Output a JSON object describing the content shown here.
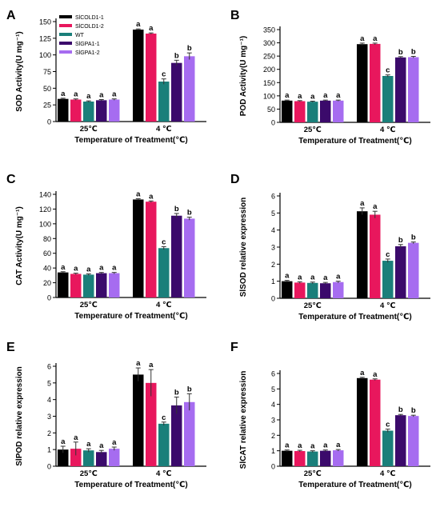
{
  "legend": {
    "placement": "inside panel A, top-left",
    "entries": [
      {
        "name": "SlCOLD1-1",
        "color": "#000000"
      },
      {
        "name": "SlCOLD1-2",
        "color": "#e8175d"
      },
      {
        "name": "WT",
        "color": "#1a7f7a"
      },
      {
        "name": "SlGPA1-1",
        "color": "#3b0a6b"
      },
      {
        "name": "SlGPA1-2",
        "color": "#a66cf0"
      }
    ]
  },
  "chart_data": [
    {
      "panel": "A",
      "type": "bar",
      "ylabel": "SOD Activity(U mg⁻¹)",
      "xlabel": "Temperature of Treatment(℃)",
      "categories": [
        "25℃",
        "4 ℃"
      ],
      "ylim": [
        0,
        150
      ],
      "yticks": [
        0,
        25,
        50,
        75,
        100,
        125,
        150
      ],
      "series": [
        {
          "name": "SlCOLD1-1",
          "values": [
            34,
            138
          ],
          "errors": [
            1,
            1
          ],
          "letters": [
            "a",
            "a"
          ]
        },
        {
          "name": "SlCOLD1-2",
          "values": [
            33,
            132
          ],
          "errors": [
            1,
            1
          ],
          "letters": [
            "a",
            "a"
          ]
        },
        {
          "name": "WT",
          "values": [
            30,
            60
          ],
          "errors": [
            1,
            4
          ],
          "letters": [
            "a",
            "c"
          ]
        },
        {
          "name": "SlGPA1-1",
          "values": [
            32,
            88
          ],
          "errors": [
            1,
            4
          ],
          "letters": [
            "a",
            "b"
          ]
        },
        {
          "name": "SlGPA1-2",
          "values": [
            33,
            98
          ],
          "errors": [
            1,
            5
          ],
          "letters": [
            "a",
            "b"
          ]
        }
      ]
    },
    {
      "panel": "B",
      "type": "bar",
      "ylabel": "POD Activity(U mg⁻¹)",
      "xlabel": "Temperature of Treatment(℃)",
      "categories": [
        "25℃",
        "4 ℃"
      ],
      "ylim": [
        0,
        350
      ],
      "yticks": [
        0,
        50,
        100,
        150,
        200,
        250,
        300,
        350
      ],
      "series": [
        {
          "name": "SlCOLD1-1",
          "values": [
            82,
            295
          ],
          "errors": [
            2,
            4
          ],
          "letters": [
            "a",
            "a"
          ]
        },
        {
          "name": "SlCOLD1-2",
          "values": [
            80,
            296
          ],
          "errors": [
            2,
            3
          ],
          "letters": [
            "a",
            "a"
          ]
        },
        {
          "name": "WT",
          "values": [
            78,
            175
          ],
          "errors": [
            2,
            4
          ],
          "letters": [
            "a",
            "c"
          ]
        },
        {
          "name": "SlGPA1-1",
          "values": [
            82,
            245
          ],
          "errors": [
            2,
            3
          ],
          "letters": [
            "a",
            "b"
          ]
        },
        {
          "name": "SlGPA1-2",
          "values": [
            82,
            246
          ],
          "errors": [
            2,
            3
          ],
          "letters": [
            "a",
            "b"
          ]
        }
      ]
    },
    {
      "panel": "C",
      "type": "bar",
      "ylabel": "CAT Activity(U mg⁻¹)",
      "xlabel": "Temperature of Treatment(℃)",
      "categories": [
        "25℃",
        "4 ℃"
      ],
      "ylim": [
        0,
        140
      ],
      "yticks": [
        0,
        20,
        40,
        60,
        80,
        100,
        120,
        140
      ],
      "series": [
        {
          "name": "SlCOLD1-1",
          "values": [
            34,
            133
          ],
          "errors": [
            1,
            1
          ],
          "letters": [
            "a",
            "a"
          ]
        },
        {
          "name": "SlCOLD1-2",
          "values": [
            32,
            130
          ],
          "errors": [
            1,
            1
          ],
          "letters": [
            "a",
            "a"
          ]
        },
        {
          "name": "WT",
          "values": [
            31,
            67
          ],
          "errors": [
            1,
            2
          ],
          "letters": [
            "a",
            "c"
          ]
        },
        {
          "name": "SlGPA1-1",
          "values": [
            33,
            111
          ],
          "errors": [
            1,
            3
          ],
          "letters": [
            "a",
            "b"
          ]
        },
        {
          "name": "SlGPA1-2",
          "values": [
            33,
            107
          ],
          "errors": [
            1,
            2
          ],
          "letters": [
            "a",
            "b"
          ]
        }
      ]
    },
    {
      "panel": "D",
      "type": "bar",
      "ylabel": "SlSOD relative expression",
      "xlabel": "Temperature of Treatment(℃)",
      "categories": [
        "25℃",
        "4 ℃"
      ],
      "ylim": [
        0,
        6
      ],
      "yticks": [
        0,
        1,
        2,
        3,
        4,
        5,
        6
      ],
      "series": [
        {
          "name": "SlCOLD1-1",
          "values": [
            1.0,
            5.1
          ],
          "errors": [
            0.05,
            0.2
          ],
          "letters": [
            "a",
            "a"
          ]
        },
        {
          "name": "SlCOLD1-2",
          "values": [
            0.92,
            4.9
          ],
          "errors": [
            0.05,
            0.2
          ],
          "letters": [
            "a",
            "a"
          ]
        },
        {
          "name": "WT",
          "values": [
            0.9,
            2.2
          ],
          "errors": [
            0.05,
            0.1
          ],
          "letters": [
            "a",
            "c"
          ]
        },
        {
          "name": "SlGPA1-1",
          "values": [
            0.88,
            3.05
          ],
          "errors": [
            0.05,
            0.1
          ],
          "letters": [
            "a",
            "b"
          ]
        },
        {
          "name": "SlGPA1-2",
          "values": [
            0.95,
            3.25
          ],
          "errors": [
            0.05,
            0.05
          ],
          "letters": [
            "a",
            "b"
          ]
        }
      ]
    },
    {
      "panel": "E",
      "type": "bar",
      "ylabel": "SlPOD relative expression",
      "xlabel": "Temperature of Treatment(℃)",
      "categories": [
        "25℃",
        "4 ℃"
      ],
      "ylim": [
        0,
        6
      ],
      "yticks": [
        0,
        1,
        2,
        3,
        4,
        5,
        6
      ],
      "series": [
        {
          "name": "SlCOLD1-1",
          "values": [
            1.0,
            5.5
          ],
          "errors": [
            0.2,
            0.4
          ],
          "letters": [
            "a",
            "a"
          ]
        },
        {
          "name": "SlCOLD1-2",
          "values": [
            1.05,
            5.0
          ],
          "errors": [
            0.4,
            0.8
          ],
          "letters": [
            "a",
            "a"
          ]
        },
        {
          "name": "WT",
          "values": [
            0.95,
            2.55
          ],
          "errors": [
            0.1,
            0.1
          ],
          "letters": [
            "a",
            "c"
          ]
        },
        {
          "name": "SlGPA1-1",
          "values": [
            0.85,
            3.65
          ],
          "errors": [
            0.1,
            0.5
          ],
          "letters": [
            "a",
            "b"
          ]
        },
        {
          "name": "SlGPA1-2",
          "values": [
            1.05,
            3.85
          ],
          "errors": [
            0.1,
            0.5
          ],
          "letters": [
            "a",
            "b"
          ]
        }
      ]
    },
    {
      "panel": "F",
      "type": "bar",
      "ylabel": "SlCAT relative expression",
      "xlabel": "Temperature of Treatment(℃)",
      "categories": [
        "25℃",
        "4 ℃"
      ],
      "ylim": [
        0,
        6
      ],
      "yticks": [
        0,
        1,
        2,
        3,
        4,
        5,
        6
      ],
      "series": [
        {
          "name": "SlCOLD1-1",
          "values": [
            1.0,
            5.7
          ],
          "errors": [
            0.05,
            0.05
          ],
          "letters": [
            "a",
            "a"
          ]
        },
        {
          "name": "SlCOLD1-2",
          "values": [
            0.98,
            5.6
          ],
          "errors": [
            0.05,
            0.05
          ],
          "letters": [
            "a",
            "a"
          ]
        },
        {
          "name": "WT",
          "values": [
            0.95,
            2.3
          ],
          "errors": [
            0.05,
            0.1
          ],
          "letters": [
            "a",
            "c"
          ]
        },
        {
          "name": "SlGPA1-1",
          "values": [
            1.0,
            3.3
          ],
          "errors": [
            0.05,
            0.05
          ],
          "letters": [
            "a",
            "b"
          ]
        },
        {
          "name": "SlGPA1-2",
          "values": [
            1.03,
            3.25
          ],
          "errors": [
            0.05,
            0.05
          ],
          "letters": [
            "a",
            "b"
          ]
        }
      ]
    }
  ]
}
